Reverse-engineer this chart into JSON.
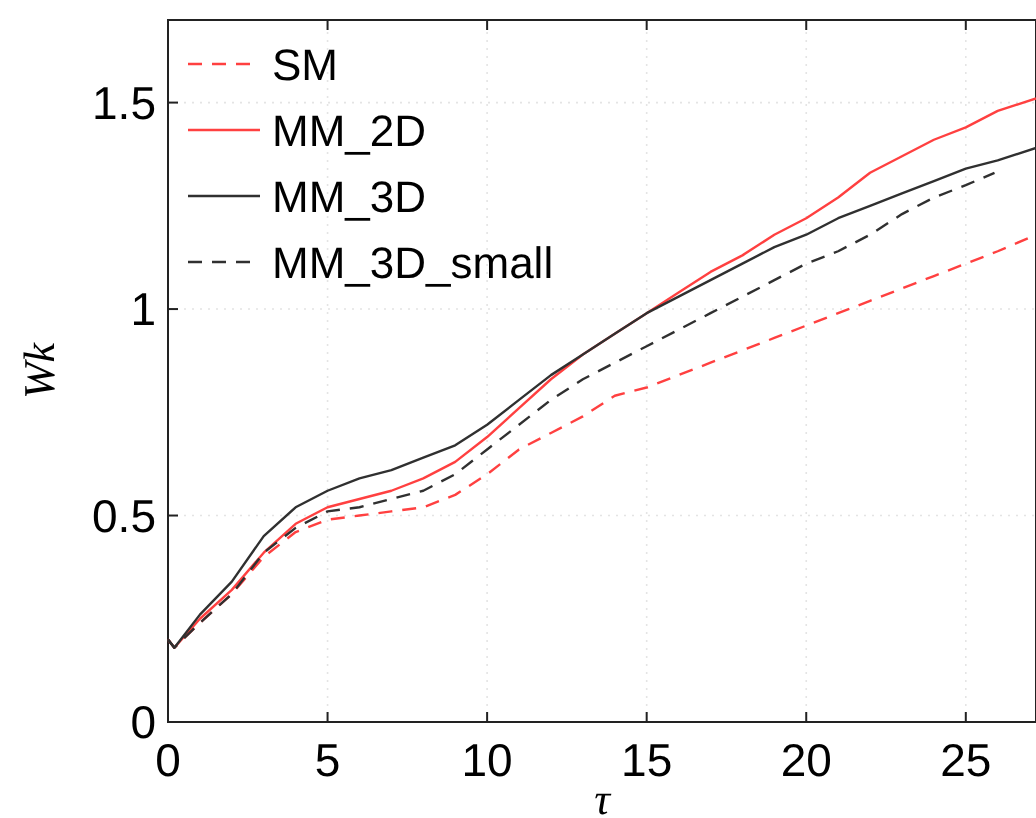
{
  "chart_data": {
    "type": "line",
    "xlabel": "τ",
    "ylabel": "Wk",
    "xlim": [
      0,
      27.2
    ],
    "ylim": [
      0,
      1.7
    ],
    "xticks": [
      0,
      5,
      10,
      15,
      20,
      25
    ],
    "yticks": [
      0,
      0.5,
      1,
      1.5
    ],
    "grid": true,
    "legend": "top left",
    "x": [
      0,
      0.2,
      1,
      2,
      3,
      4,
      5,
      6,
      7,
      8,
      9,
      10,
      11,
      12,
      13,
      14,
      15,
      16,
      17,
      18,
      19,
      20,
      21,
      22,
      23,
      24,
      25,
      26,
      27.2
    ],
    "series": [
      {
        "name": "SM",
        "color": "#ff4040",
        "line_style": "dashed",
        "values": [
          0.2,
          0.18,
          0.24,
          0.31,
          0.4,
          0.46,
          0.49,
          0.5,
          0.51,
          0.52,
          0.55,
          0.6,
          0.66,
          0.7,
          0.74,
          0.79,
          0.81,
          0.84,
          0.87,
          0.9,
          0.93,
          0.96,
          0.99,
          1.02,
          1.05,
          1.08,
          1.11,
          1.14,
          1.18
        ]
      },
      {
        "name": "MM_2D",
        "color": "#ff4040",
        "line_style": "solid",
        "values": [
          0.2,
          0.18,
          0.25,
          0.32,
          0.41,
          0.48,
          0.52,
          0.54,
          0.56,
          0.59,
          0.63,
          0.69,
          0.76,
          0.83,
          0.89,
          0.94,
          0.99,
          1.04,
          1.09,
          1.13,
          1.18,
          1.22,
          1.27,
          1.33,
          1.37,
          1.41,
          1.44,
          1.48,
          1.51
        ]
      },
      {
        "name": "MM_3D",
        "color": "#303030",
        "line_style": "solid",
        "values": [
          0.2,
          0.18,
          0.26,
          0.34,
          0.45,
          0.52,
          0.56,
          0.59,
          0.61,
          0.64,
          0.67,
          0.72,
          0.78,
          0.84,
          0.89,
          0.94,
          0.99,
          1.03,
          1.07,
          1.11,
          1.15,
          1.18,
          1.22,
          1.25,
          1.28,
          1.31,
          1.34,
          1.36,
          1.39
        ]
      },
      {
        "name": "MM_3D_small",
        "color": "#303030",
        "line_style": "dashed",
        "x": [
          0,
          0.2,
          1,
          2,
          3,
          4,
          5,
          6,
          7,
          8,
          9,
          10,
          11,
          12,
          13,
          14,
          15,
          16,
          17,
          18,
          19,
          20,
          21,
          22,
          23,
          24,
          25,
          25.9
        ],
        "values": [
          0.2,
          0.18,
          0.24,
          0.31,
          0.41,
          0.47,
          0.51,
          0.52,
          0.54,
          0.56,
          0.6,
          0.66,
          0.72,
          0.78,
          0.83,
          0.87,
          0.91,
          0.95,
          0.99,
          1.03,
          1.07,
          1.11,
          1.14,
          1.18,
          1.23,
          1.27,
          1.3,
          1.33
        ]
      }
    ]
  }
}
